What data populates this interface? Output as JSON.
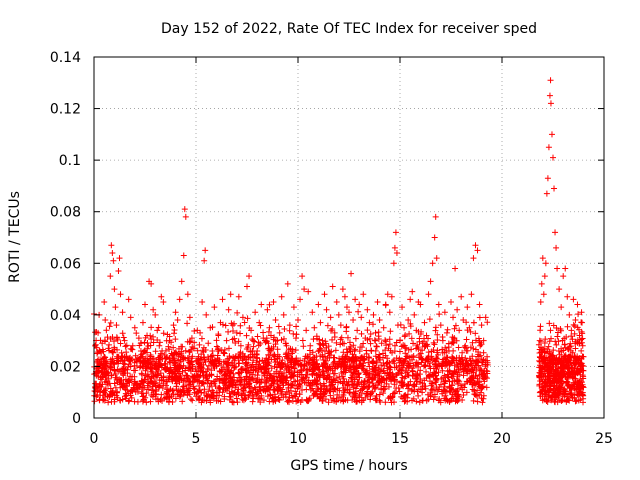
{
  "chart_data": {
    "type": "scatter",
    "title": "Day 152 of 2022, Rate Of TEC Index for receiver sped",
    "xlabel": "GPS time / hours",
    "ylabel": "ROTI / TECUs",
    "xlim": [
      0,
      25
    ],
    "ylim": [
      0,
      0.14
    ],
    "x_ticks": [
      "0",
      "5",
      "10",
      "15",
      "20",
      "25"
    ],
    "y_ticks": [
      "0",
      "0.02",
      "0.04",
      "0.06",
      "0.08",
      "0.1",
      "0.12",
      "0.14"
    ],
    "grid": true,
    "marker": "+",
    "color": "#ff0000",
    "series": [
      {
        "values": [
          [
            0.05,
            0.012
          ],
          [
            0.1,
            0.018
          ],
          [
            0.15,
            0.025
          ],
          [
            0.2,
            0.033
          ],
          [
            0.25,
            0.04
          ],
          [
            0.3,
            0.021
          ],
          [
            0.35,
            0.015
          ],
          [
            0.4,
            0.029
          ],
          [
            0.5,
            0.045
          ],
          [
            0.55,
            0.038
          ],
          [
            0.6,
            0.019
          ],
          [
            0.7,
            0.027
          ],
          [
            0.8,
            0.055
          ],
          [
            0.85,
            0.067
          ],
          [
            0.9,
            0.064
          ],
          [
            0.95,
            0.061
          ],
          [
            1.0,
            0.05
          ],
          [
            1.05,
            0.043
          ],
          [
            1.1,
            0.036
          ],
          [
            1.2,
            0.057
          ],
          [
            1.25,
            0.062
          ],
          [
            1.3,
            0.048
          ],
          [
            1.4,
            0.041
          ],
          [
            1.5,
            0.03
          ],
          [
            1.6,
            0.024
          ],
          [
            1.7,
            0.046
          ],
          [
            1.8,
            0.039
          ],
          [
            1.9,
            0.028
          ],
          [
            2.0,
            0.035
          ],
          [
            2.1,
            0.022
          ],
          [
            2.2,
            0.031
          ],
          [
            2.3,
            0.026
          ],
          [
            2.4,
            0.037
          ],
          [
            2.5,
            0.044
          ],
          [
            2.6,
            0.032
          ],
          [
            2.7,
            0.053
          ],
          [
            2.8,
            0.052
          ],
          [
            2.9,
            0.042
          ],
          [
            3.0,
            0.04
          ],
          [
            3.1,
            0.034
          ],
          [
            3.2,
            0.028
          ],
          [
            3.3,
            0.047
          ],
          [
            3.4,
            0.045
          ],
          [
            3.5,
            0.023
          ],
          [
            3.6,
            0.019
          ],
          [
            3.7,
            0.03
          ],
          [
            3.8,
            0.025
          ],
          [
            3.9,
            0.036
          ],
          [
            4.0,
            0.041
          ],
          [
            4.1,
            0.038
          ],
          [
            4.2,
            0.046
          ],
          [
            4.3,
            0.053
          ],
          [
            4.4,
            0.063
          ],
          [
            4.45,
            0.081
          ],
          [
            4.5,
            0.078
          ],
          [
            4.6,
            0.048
          ],
          [
            4.7,
            0.039
          ],
          [
            4.8,
            0.031
          ],
          [
            4.9,
            0.027
          ],
          [
            5.0,
            0.022
          ],
          [
            5.1,
            0.018
          ],
          [
            5.2,
            0.033
          ],
          [
            5.3,
            0.045
          ],
          [
            5.4,
            0.061
          ],
          [
            5.45,
            0.065
          ],
          [
            5.5,
            0.04
          ],
          [
            5.6,
            0.029
          ],
          [
            5.7,
            0.035
          ],
          [
            5.8,
            0.026
          ],
          [
            5.9,
            0.043
          ],
          [
            6.0,
            0.02
          ],
          [
            6.1,
            0.032
          ],
          [
            6.2,
            0.037
          ],
          [
            6.3,
            0.046
          ],
          [
            6.4,
            0.025
          ],
          [
            6.5,
            0.03
          ],
          [
            6.6,
            0.042
          ],
          [
            6.7,
            0.048
          ],
          [
            6.8,
            0.036
          ],
          [
            6.9,
            0.023
          ],
          [
            7.0,
            0.033
          ],
          [
            7.1,
            0.047
          ],
          [
            7.2,
            0.028
          ],
          [
            7.3,
            0.039
          ],
          [
            7.4,
            0.024
          ],
          [
            7.5,
            0.051
          ],
          [
            7.6,
            0.055
          ],
          [
            7.7,
            0.034
          ],
          [
            7.8,
            0.03
          ],
          [
            7.9,
            0.041
          ],
          [
            8.0,
            0.026
          ],
          [
            8.1,
            0.037
          ],
          [
            8.2,
            0.044
          ],
          [
            8.3,
            0.031
          ],
          [
            8.4,
            0.02
          ],
          [
            8.5,
            0.042
          ],
          [
            8.6,
            0.035
          ],
          [
            8.7,
            0.027
          ],
          [
            8.8,
            0.045
          ],
          [
            8.9,
            0.038
          ],
          [
            9.0,
            0.023
          ],
          [
            9.1,
            0.033
          ],
          [
            9.2,
            0.047
          ],
          [
            9.3,
            0.04
          ],
          [
            9.4,
            0.029
          ],
          [
            9.5,
            0.052
          ],
          [
            9.6,
            0.036
          ],
          [
            9.7,
            0.025
          ],
          [
            9.8,
            0.043
          ],
          [
            9.9,
            0.031
          ],
          [
            10.0,
            0.038
          ],
          [
            10.1,
            0.046
          ],
          [
            10.2,
            0.055
          ],
          [
            10.3,
            0.05
          ],
          [
            10.4,
            0.034
          ],
          [
            10.5,
            0.049
          ],
          [
            10.6,
            0.028
          ],
          [
            10.7,
            0.041
          ],
          [
            10.8,
            0.035
          ],
          [
            10.9,
            0.024
          ],
          [
            11.0,
            0.044
          ],
          [
            11.1,
            0.037
          ],
          [
            11.2,
            0.03
          ],
          [
            11.3,
            0.048
          ],
          [
            11.4,
            0.042
          ],
          [
            11.5,
            0.026
          ],
          [
            11.6,
            0.039
          ],
          [
            11.7,
            0.051
          ],
          [
            11.8,
            0.033
          ],
          [
            11.9,
            0.045
          ],
          [
            12.0,
            0.04
          ],
          [
            12.1,
            0.036
          ],
          [
            12.2,
            0.05
          ],
          [
            12.3,
            0.047
          ],
          [
            12.4,
            0.043
          ],
          [
            12.5,
            0.041
          ],
          [
            12.6,
            0.056
          ],
          [
            12.7,
            0.038
          ],
          [
            12.8,
            0.046
          ],
          [
            12.9,
            0.034
          ],
          [
            13.0,
            0.044
          ],
          [
            13.1,
            0.039
          ],
          [
            13.2,
            0.048
          ],
          [
            13.3,
            0.031
          ],
          [
            13.4,
            0.042
          ],
          [
            13.5,
            0.037
          ],
          [
            13.6,
            0.026
          ],
          [
            13.7,
            0.04
          ],
          [
            13.8,
            0.033
          ],
          [
            13.9,
            0.045
          ],
          [
            14.0,
            0.038
          ],
          [
            14.1,
            0.029
          ],
          [
            14.2,
            0.035
          ],
          [
            14.3,
            0.044
          ],
          [
            14.4,
            0.048
          ],
          [
            14.5,
            0.041
          ],
          [
            14.6,
            0.047
          ],
          [
            14.7,
            0.06
          ],
          [
            14.75,
            0.066
          ],
          [
            14.8,
            0.072
          ],
          [
            14.85,
            0.064
          ],
          [
            14.9,
            0.036
          ],
          [
            15.0,
            0.03
          ],
          [
            15.1,
            0.043
          ],
          [
            15.2,
            0.035
          ],
          [
            15.3,
            0.027
          ],
          [
            15.4,
            0.038
          ],
          [
            15.5,
            0.046
          ],
          [
            15.6,
            0.049
          ],
          [
            15.7,
            0.04
          ],
          [
            15.8,
            0.034
          ],
          [
            15.9,
            0.045
          ],
          [
            16.0,
            0.044
          ],
          [
            16.1,
            0.029
          ],
          [
            16.2,
            0.037
          ],
          [
            16.3,
            0.032
          ],
          [
            16.4,
            0.048
          ],
          [
            16.5,
            0.053
          ],
          [
            16.6,
            0.06
          ],
          [
            16.7,
            0.07
          ],
          [
            16.75,
            0.078
          ],
          [
            16.8,
            0.062
          ],
          [
            16.9,
            0.044
          ],
          [
            17.0,
            0.036
          ],
          [
            17.1,
            0.03
          ],
          [
            17.2,
            0.041
          ],
          [
            17.3,
            0.033
          ],
          [
            17.4,
            0.026
          ],
          [
            17.5,
            0.045
          ],
          [
            17.6,
            0.039
          ],
          [
            17.7,
            0.058
          ],
          [
            17.8,
            0.042
          ],
          [
            17.9,
            0.034
          ],
          [
            18.0,
            0.047
          ],
          [
            18.1,
            0.038
          ],
          [
            18.2,
            0.028
          ],
          [
            18.3,
            0.043
          ],
          [
            18.4,
            0.035
          ],
          [
            18.5,
            0.048
          ],
          [
            18.6,
            0.062
          ],
          [
            18.7,
            0.067
          ],
          [
            18.8,
            0.065
          ],
          [
            18.9,
            0.044
          ],
          [
            19.0,
            0.036
          ],
          [
            19.1,
            0.03
          ],
          [
            19.2,
            0.039
          ],
          [
            21.85,
            0.03
          ],
          [
            21.9,
            0.045
          ],
          [
            21.95,
            0.052
          ],
          [
            22.0,
            0.062
          ],
          [
            22.05,
            0.048
          ],
          [
            22.1,
            0.055
          ],
          [
            22.15,
            0.06
          ],
          [
            22.2,
            0.087
          ],
          [
            22.25,
            0.093
          ],
          [
            22.3,
            0.105
          ],
          [
            22.35,
            0.125
          ],
          [
            22.38,
            0.131
          ],
          [
            22.4,
            0.122
          ],
          [
            22.45,
            0.11
          ],
          [
            22.5,
            0.101
          ],
          [
            22.55,
            0.089
          ],
          [
            22.6,
            0.072
          ],
          [
            22.65,
            0.066
          ],
          [
            22.7,
            0.058
          ],
          [
            22.8,
            0.05
          ],
          [
            22.9,
            0.043
          ],
          [
            23.0,
            0.055
          ],
          [
            23.1,
            0.058
          ],
          [
            23.2,
            0.047
          ],
          [
            23.3,
            0.04
          ],
          [
            23.4,
            0.034
          ],
          [
            23.5,
            0.046
          ],
          [
            23.6,
            0.038
          ],
          [
            23.7,
            0.044
          ],
          [
            23.8,
            0.032
          ],
          [
            23.9,
            0.041
          ]
        ]
      }
    ]
  }
}
